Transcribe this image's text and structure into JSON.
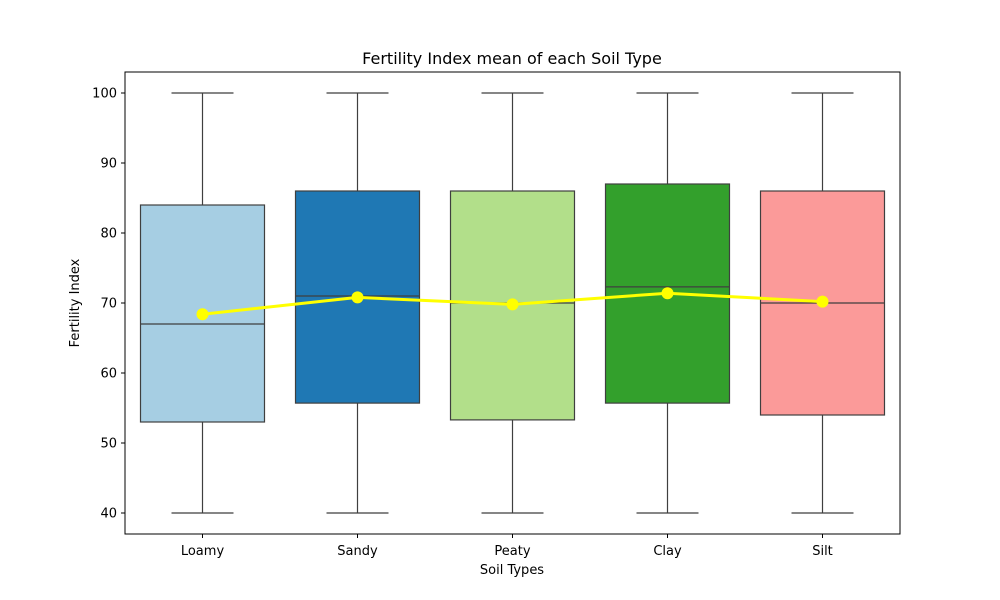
{
  "chart_data": {
    "type": "box",
    "title": "Fertility Index mean of each Soil Type",
    "xlabel": "Soil Types",
    "ylabel": "Fertility Index",
    "ylim": [
      37,
      103
    ],
    "yticks": [
      40,
      50,
      60,
      70,
      80,
      90,
      100
    ],
    "grid": false,
    "categories": [
      "Loamy",
      "Sandy",
      "Peaty",
      "Clay",
      "Silt"
    ],
    "box_colors": [
      "#a6cee3",
      "#1f78b4",
      "#b2df8a",
      "#33a02c",
      "#fb9a99"
    ],
    "boxes": [
      {
        "whisker_low": 40,
        "q1": 53,
        "median": 67,
        "q3": 84,
        "whisker_high": 100
      },
      {
        "whisker_low": 40,
        "q1": 55.7,
        "median": 71,
        "q3": 86,
        "whisker_high": 100
      },
      {
        "whisker_low": 40,
        "q1": 53.3,
        "median": 70,
        "q3": 86,
        "whisker_high": 100
      },
      {
        "whisker_low": 40,
        "q1": 55.7,
        "median": 72.3,
        "q3": 87,
        "whisker_high": 100
      },
      {
        "whisker_low": 40,
        "q1": 54,
        "median": 70,
        "q3": 86,
        "whisker_high": 100
      }
    ],
    "mean_line": {
      "color": "#ffff00",
      "values": [
        68.4,
        70.8,
        69.8,
        71.4,
        70.2
      ]
    }
  }
}
